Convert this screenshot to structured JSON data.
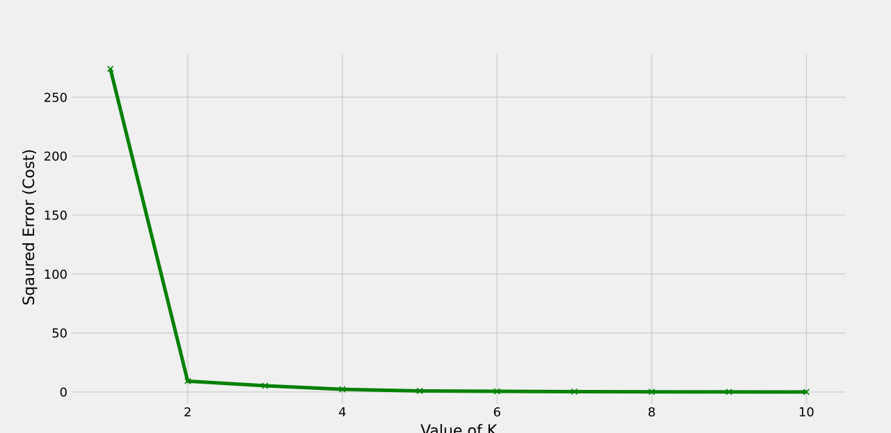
{
  "chart_data": {
    "type": "line",
    "title": "",
    "xlabel": "Value of K",
    "ylabel": "Sqaured Error (Cost)",
    "x": [
      1,
      2,
      3,
      4,
      5,
      6,
      7,
      8,
      9,
      10
    ],
    "series": [
      {
        "name": "",
        "values": [
          274,
          9.2,
          5.3,
          2.3,
          0.9,
          0.6,
          0.35,
          0.2,
          0.1,
          0.05
        ],
        "color": "#008000",
        "marker": "x"
      }
    ],
    "xlim": [
      0.5,
      10.5
    ],
    "ylim": [
      -10,
      287
    ],
    "xticks": [
      2,
      4,
      6,
      8,
      10
    ],
    "yticks": [
      0,
      50,
      100,
      150,
      200,
      250
    ],
    "grid": true
  }
}
